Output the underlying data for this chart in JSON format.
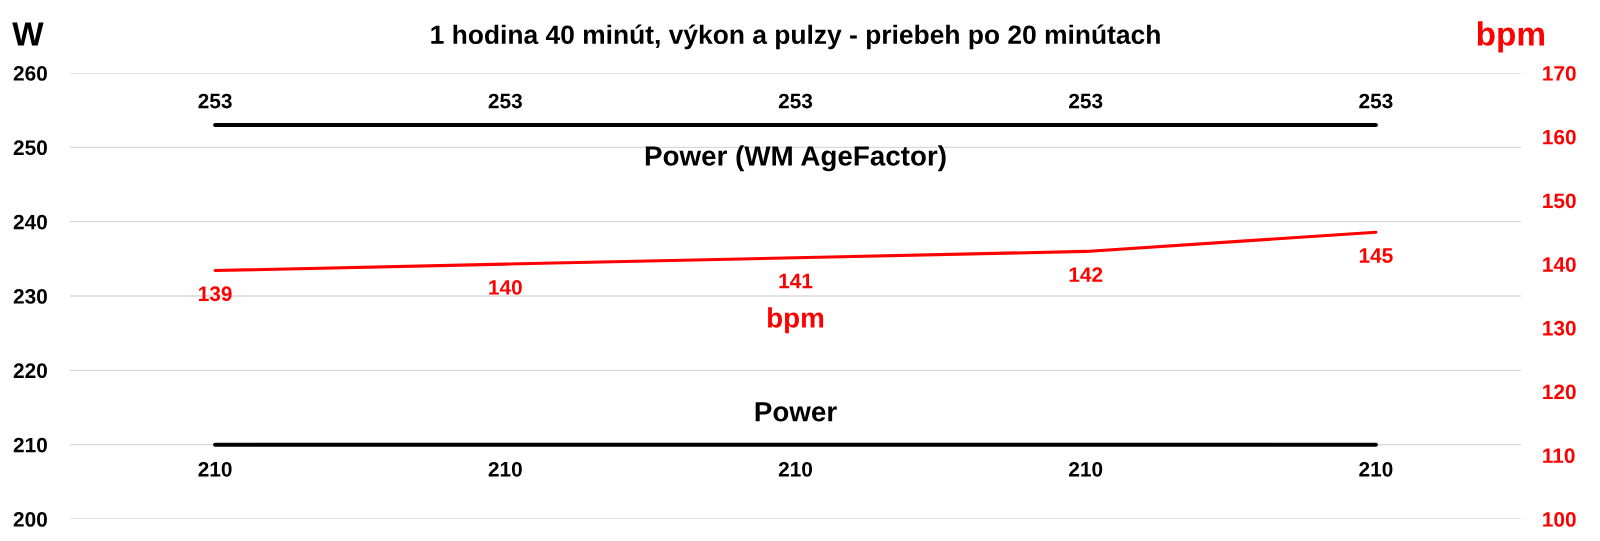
{
  "chart_data": {
    "type": "line",
    "title": "1 hodina 40 minút, výkon a pulzy - priebeh po 20 minútach",
    "ylabel": "W",
    "y2label": "bpm",
    "categories": [
      null,
      null,
      null,
      null,
      null
    ],
    "series": [
      {
        "name": "Power (WM AgeFactor)",
        "color": "#000000",
        "values": [
          253,
          253,
          253,
          253,
          253
        ]
      },
      {
        "name": "bpm",
        "color": "#ff0000",
        "axis": "y2",
        "values": [
          139,
          140,
          141,
          142,
          145
        ]
      },
      {
        "name": "Power",
        "color": "#000000",
        "values": [
          210,
          210,
          210,
          210,
          210
        ]
      }
    ],
    "ylim": [
      200,
      260
    ],
    "yticks": [
      200,
      210,
      220,
      230,
      240,
      250,
      260
    ],
    "y2lim": [
      100,
      170
    ],
    "y2ticks": [
      100,
      110,
      120,
      130,
      140,
      150,
      160,
      170
    ],
    "grid": "y",
    "data_labels": true
  }
}
